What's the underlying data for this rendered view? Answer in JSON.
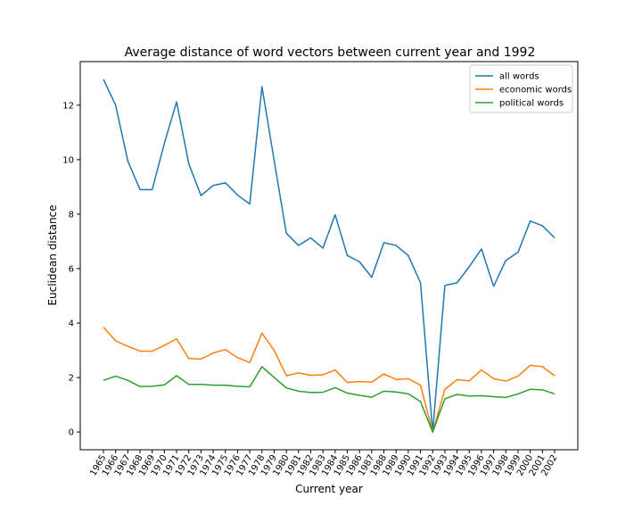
{
  "chart_data": {
    "type": "line",
    "title": "Average distance of word vectors between current year and 1992",
    "xlabel": "Current year",
    "ylabel": "Euclidean distance",
    "x": [
      1965,
      1966,
      1967,
      1968,
      1969,
      1970,
      1971,
      1972,
      1973,
      1974,
      1975,
      1976,
      1977,
      1978,
      1979,
      1980,
      1981,
      1982,
      1983,
      1984,
      1985,
      1986,
      1987,
      1988,
      1989,
      1990,
      1991,
      1992,
      1993,
      1994,
      1995,
      1996,
      1997,
      1998,
      1999,
      2000,
      2001,
      2002
    ],
    "yticks": [
      0,
      2,
      4,
      6,
      8,
      10,
      12
    ],
    "ylim": [
      -0.65,
      13.6
    ],
    "xlim": [
      1963.1,
      2003.9
    ],
    "legend_position": "top-right",
    "grid": false,
    "series": [
      {
        "name": "all words",
        "color": "#1f77b4",
        "values": [
          12.95,
          12.0,
          9.95,
          8.9,
          8.9,
          10.6,
          12.12,
          9.85,
          8.68,
          9.05,
          9.15,
          8.7,
          8.37,
          12.68,
          9.97,
          7.3,
          6.85,
          7.13,
          6.75,
          7.98,
          6.48,
          6.25,
          5.68,
          6.95,
          6.85,
          6.48,
          5.48,
          0.0,
          5.38,
          5.48,
          6.07,
          6.72,
          5.35,
          6.3,
          6.6,
          7.75,
          7.57,
          7.13
        ]
      },
      {
        "name": "economic words",
        "color": "#ff7f0e",
        "values": [
          3.85,
          3.35,
          3.15,
          2.97,
          2.97,
          3.18,
          3.42,
          2.7,
          2.68,
          2.9,
          3.03,
          2.73,
          2.55,
          3.63,
          3.0,
          2.07,
          2.17,
          2.08,
          2.1,
          2.28,
          1.82,
          1.85,
          1.83,
          2.13,
          1.93,
          1.96,
          1.72,
          0.0,
          1.57,
          1.92,
          1.88,
          2.28,
          1.96,
          1.87,
          2.05,
          2.45,
          2.4,
          2.07
        ]
      },
      {
        "name": "political words",
        "color": "#2ca02c",
        "values": [
          1.9,
          2.05,
          1.9,
          1.67,
          1.68,
          1.73,
          2.07,
          1.75,
          1.75,
          1.72,
          1.72,
          1.68,
          1.66,
          2.4,
          2.0,
          1.62,
          1.5,
          1.45,
          1.46,
          1.63,
          1.43,
          1.35,
          1.28,
          1.5,
          1.47,
          1.4,
          1.12,
          0.0,
          1.22,
          1.38,
          1.32,
          1.33,
          1.3,
          1.27,
          1.4,
          1.57,
          1.55,
          1.4
        ]
      }
    ]
  }
}
